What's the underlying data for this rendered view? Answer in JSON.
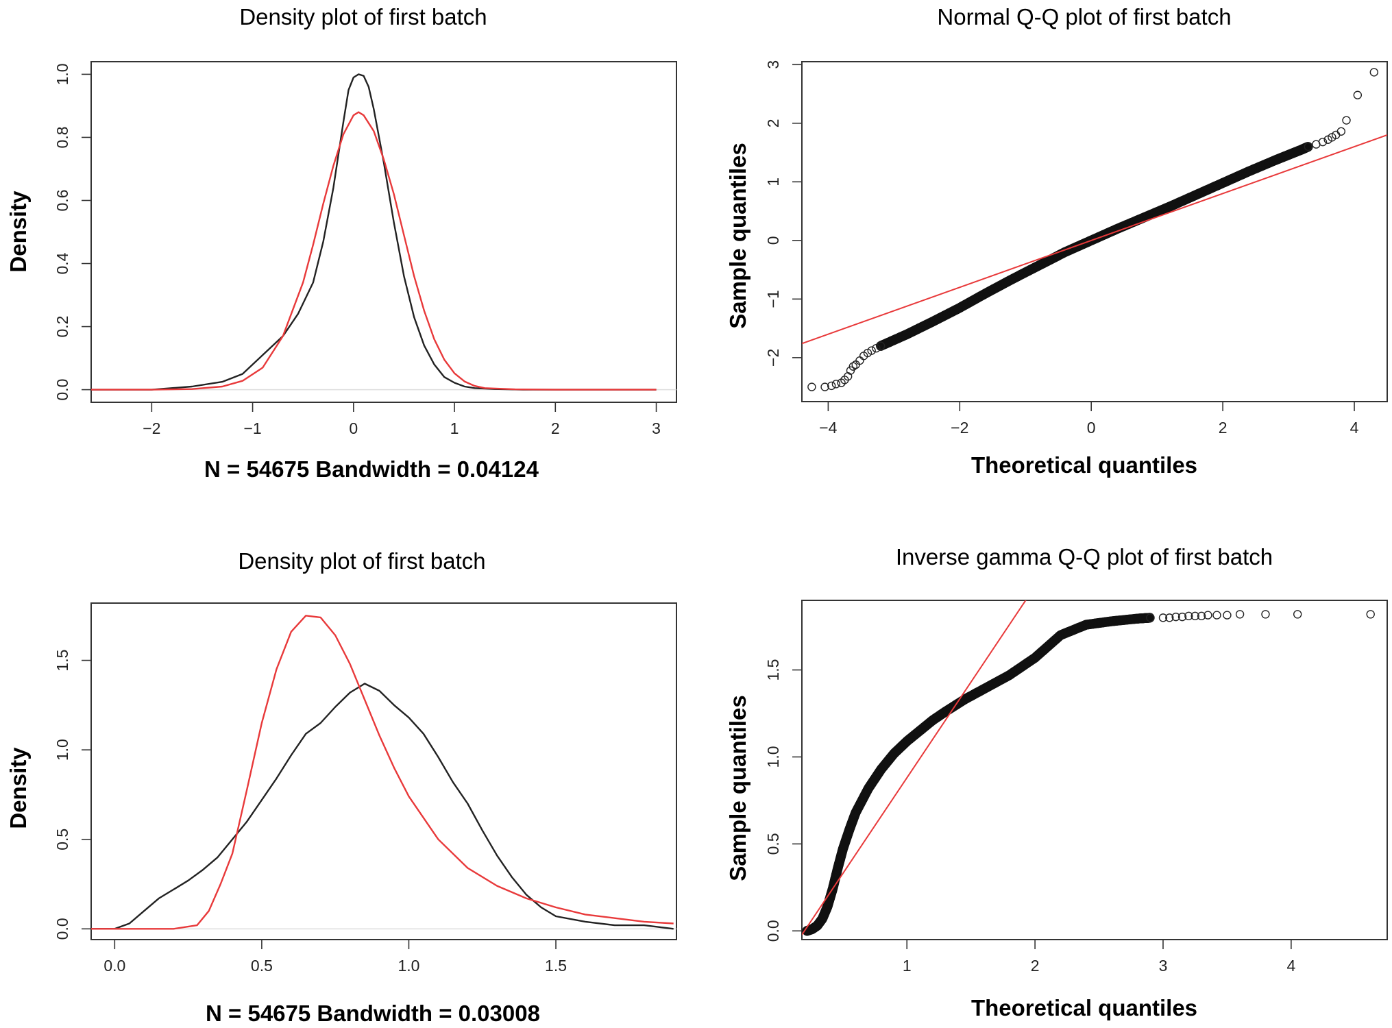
{
  "chart_data": [
    {
      "type": "line",
      "title": "Density plot of first batch",
      "xlabel": "N = 54675   Bandwidth = 0.04124",
      "ylabel": "Density",
      "xlim": [
        -2.6,
        3.2
      ],
      "ylim": [
        -0.04,
        1.04
      ],
      "xticks": [
        -2,
        -1,
        0,
        1,
        2,
        3
      ],
      "xtick_labels": [
        "−2",
        "−1",
        "0",
        "1",
        "2",
        "3"
      ],
      "yticks": [
        0.0,
        0.2,
        0.4,
        0.6,
        0.8,
        1.0
      ],
      "ytick_labels": [
        "0.0",
        "0.2",
        "0.4",
        "0.6",
        "0.8",
        "1.0"
      ],
      "series": [
        {
          "name": "empirical density",
          "color": "#222222",
          "x": [
            -2.6,
            -2.0,
            -1.6,
            -1.3,
            -1.1,
            -0.9,
            -0.7,
            -0.55,
            -0.4,
            -0.3,
            -0.2,
            -0.1,
            -0.05,
            0.0,
            0.05,
            0.1,
            0.15,
            0.2,
            0.3,
            0.4,
            0.5,
            0.6,
            0.7,
            0.8,
            0.9,
            1.0,
            1.1,
            1.2,
            1.4,
            1.7,
            2.2,
            3.0
          ],
          "y": [
            0.0,
            0.0,
            0.01,
            0.025,
            0.05,
            0.11,
            0.17,
            0.24,
            0.34,
            0.47,
            0.64,
            0.85,
            0.95,
            0.99,
            1.0,
            0.995,
            0.96,
            0.89,
            0.72,
            0.53,
            0.36,
            0.23,
            0.14,
            0.08,
            0.04,
            0.022,
            0.01,
            0.005,
            0.002,
            0.0,
            0.0,
            0.0
          ]
        },
        {
          "name": "fitted normal",
          "color": "#e8393a",
          "x": [
            -2.6,
            -2.0,
            -1.6,
            -1.3,
            -1.1,
            -0.9,
            -0.7,
            -0.5,
            -0.4,
            -0.3,
            -0.2,
            -0.1,
            0.0,
            0.05,
            0.1,
            0.2,
            0.3,
            0.4,
            0.5,
            0.6,
            0.7,
            0.8,
            0.9,
            1.0,
            1.1,
            1.2,
            1.3,
            1.6,
            2.0,
            3.0
          ],
          "y": [
            0.0,
            0.0,
            0.002,
            0.01,
            0.028,
            0.07,
            0.17,
            0.34,
            0.46,
            0.59,
            0.71,
            0.81,
            0.87,
            0.88,
            0.87,
            0.82,
            0.73,
            0.62,
            0.49,
            0.36,
            0.25,
            0.16,
            0.095,
            0.052,
            0.026,
            0.012,
            0.005,
            0.001,
            0.0,
            0.0
          ]
        }
      ]
    },
    {
      "type": "scatter",
      "title": "Normal Q-Q plot of first batch",
      "xlabel": "Theoretical quantiles",
      "ylabel": "Sample quantiles",
      "xlim": [
        -4.4,
        4.5
      ],
      "ylim": [
        -2.75,
        3.05
      ],
      "xticks": [
        -4,
        -2,
        0,
        2,
        4
      ],
      "xtick_labels": [
        "−4",
        "−2",
        "0",
        "2",
        "4"
      ],
      "yticks": [
        -2,
        -1,
        0,
        1,
        2,
        3
      ],
      "ytick_labels": [
        "−2",
        "−1",
        "0",
        "1",
        "2",
        "3"
      ],
      "reference_line": {
        "color": "#e8393a",
        "intercept": 0.0,
        "slope": 0.4
      },
      "points_x": [
        -4.25,
        -4.05,
        -3.95,
        -3.88,
        -3.8,
        -3.75,
        -3.7,
        -3.66,
        -3.62,
        -3.58,
        -3.52,
        -3.46,
        -3.4,
        -3.34,
        -3.27,
        -3.2,
        3.3,
        3.42,
        3.52,
        3.6,
        3.66,
        3.72,
        3.8,
        3.88,
        4.05,
        4.3
      ],
      "points_y": [
        -2.5,
        -2.5,
        -2.48,
        -2.45,
        -2.43,
        -2.38,
        -2.32,
        -2.22,
        -2.15,
        -2.12,
        -2.05,
        -1.97,
        -1.92,
        -1.88,
        -1.84,
        -1.8,
        1.6,
        1.64,
        1.68,
        1.72,
        1.76,
        1.8,
        1.86,
        2.05,
        2.48,
        2.87
      ],
      "dense_curve": {
        "x": [
          -3.2,
          -2.8,
          -2.4,
          -2.0,
          -1.6,
          -1.2,
          -0.8,
          -0.4,
          0.0,
          0.4,
          0.8,
          1.2,
          1.6,
          2.0,
          2.4,
          2.8,
          3.0,
          3.2,
          3.3
        ],
        "y": [
          -1.8,
          -1.6,
          -1.38,
          -1.15,
          -0.9,
          -0.66,
          -0.43,
          -0.2,
          0.0,
          0.2,
          0.39,
          0.58,
          0.78,
          0.98,
          1.18,
          1.37,
          1.46,
          1.55,
          1.6
        ]
      }
    },
    {
      "type": "line",
      "title": "Density plot of first batch",
      "xlabel": "N = 54675   Bandwidth = 0.03008",
      "ylabel": "Density",
      "xlim": [
        -0.08,
        1.91
      ],
      "ylim": [
        -0.06,
        1.82
      ],
      "xticks": [
        0.0,
        0.5,
        1.0,
        1.5
      ],
      "xtick_labels": [
        "0.0",
        "0.5",
        "1.0",
        "1.5"
      ],
      "yticks": [
        0.0,
        0.5,
        1.0,
        1.5
      ],
      "ytick_labels": [
        "0.0",
        "0.5",
        "1.0",
        "1.5"
      ],
      "series": [
        {
          "name": "empirical density",
          "color": "#222222",
          "x": [
            -0.08,
            0.0,
            0.05,
            0.1,
            0.15,
            0.2,
            0.25,
            0.3,
            0.35,
            0.4,
            0.45,
            0.5,
            0.55,
            0.6,
            0.65,
            0.7,
            0.75,
            0.8,
            0.85,
            0.9,
            0.95,
            1.0,
            1.05,
            1.1,
            1.15,
            1.2,
            1.25,
            1.3,
            1.35,
            1.4,
            1.45,
            1.5,
            1.6,
            1.7,
            1.8,
            1.9
          ],
          "y": [
            0.0,
            0.0,
            0.03,
            0.1,
            0.17,
            0.22,
            0.27,
            0.33,
            0.4,
            0.5,
            0.6,
            0.72,
            0.84,
            0.97,
            1.09,
            1.15,
            1.24,
            1.32,
            1.37,
            1.33,
            1.25,
            1.18,
            1.09,
            0.96,
            0.82,
            0.7,
            0.55,
            0.41,
            0.29,
            0.19,
            0.12,
            0.07,
            0.04,
            0.02,
            0.02,
            0.0
          ]
        },
        {
          "name": "fitted inverse gamma",
          "color": "#e8393a",
          "x": [
            -0.08,
            0.2,
            0.28,
            0.32,
            0.36,
            0.4,
            0.45,
            0.5,
            0.55,
            0.6,
            0.65,
            0.7,
            0.75,
            0.8,
            0.85,
            0.9,
            0.95,
            1.0,
            1.1,
            1.2,
            1.3,
            1.4,
            1.5,
            1.6,
            1.7,
            1.8,
            1.9
          ],
          "y": [
            0.0,
            0.0,
            0.02,
            0.1,
            0.25,
            0.42,
            0.78,
            1.15,
            1.45,
            1.66,
            1.75,
            1.74,
            1.64,
            1.48,
            1.28,
            1.08,
            0.9,
            0.74,
            0.5,
            0.34,
            0.24,
            0.17,
            0.12,
            0.08,
            0.06,
            0.04,
            0.03
          ]
        }
      ]
    },
    {
      "type": "scatter",
      "title": "Inverse gamma Q-Q plot of first batch",
      "xlabel": "Theoretical quantiles",
      "ylabel": "Sample quantiles",
      "xlim": [
        0.18,
        4.75
      ],
      "ylim": [
        -0.05,
        1.9
      ],
      "xticks": [
        1,
        2,
        3,
        4
      ],
      "xtick_labels": [
        "1",
        "2",
        "3",
        "4"
      ],
      "yticks": [
        0.0,
        0.5,
        1.0,
        1.5
      ],
      "ytick_labels": [
        "0.0",
        "0.5",
        "1.0",
        "1.5"
      ],
      "reference_line": {
        "color": "#e8393a",
        "intercept": -0.22,
        "slope": 1.1
      },
      "points_x": [
        2.9,
        3.0,
        3.05,
        3.1,
        3.15,
        3.2,
        3.25,
        3.3,
        3.35,
        3.42,
        3.5,
        3.6,
        3.8,
        4.05,
        4.62
      ],
      "points_y": [
        1.8,
        1.8,
        1.8,
        1.805,
        1.805,
        1.81,
        1.81,
        1.81,
        1.815,
        1.815,
        1.815,
        1.82,
        1.82,
        1.82,
        1.82
      ],
      "dense_curve": {
        "x": [
          0.22,
          0.26,
          0.3,
          0.34,
          0.38,
          0.42,
          0.46,
          0.5,
          0.55,
          0.6,
          0.7,
          0.8,
          0.9,
          1.0,
          1.1,
          1.2,
          1.3,
          1.45,
          1.6,
          1.8,
          2.0,
          2.2,
          2.4,
          2.6,
          2.8,
          2.9
        ],
        "y": [
          0.0,
          0.01,
          0.03,
          0.07,
          0.14,
          0.24,
          0.36,
          0.47,
          0.58,
          0.68,
          0.82,
          0.93,
          1.02,
          1.09,
          1.15,
          1.21,
          1.26,
          1.33,
          1.39,
          1.47,
          1.57,
          1.7,
          1.76,
          1.78,
          1.795,
          1.8
        ]
      }
    }
  ]
}
